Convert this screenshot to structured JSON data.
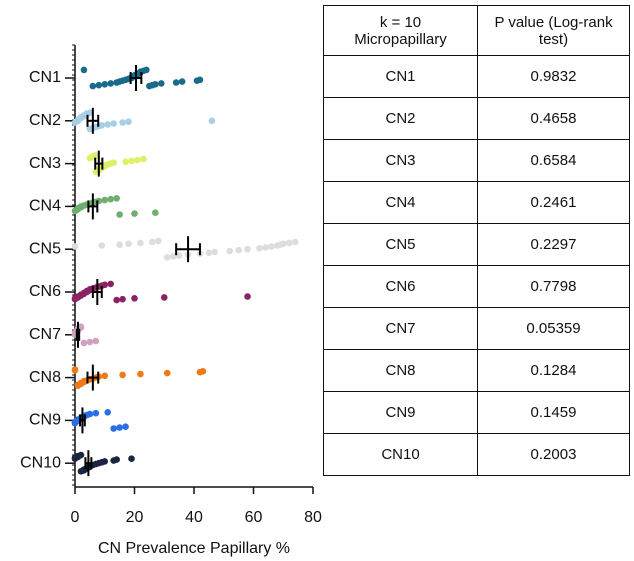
{
  "chart_data": {
    "type": "strip",
    "categories": [
      "CN1",
      "CN2",
      "CN3",
      "CN4",
      "CN5",
      "CN6",
      "CN7",
      "CN8",
      "CN9",
      "CN10"
    ],
    "colors": [
      "#1a6b8a",
      "#a8cfe6",
      "#e0ef6a",
      "#6fae6f",
      "#dddddd",
      "#8b2266",
      "#d1a0c0",
      "#ee7a16",
      "#2a6fe8",
      "#1a2540"
    ],
    "points": [
      [
        3,
        6,
        8,
        10,
        12,
        14,
        15,
        16,
        17,
        18,
        19,
        19,
        20,
        20,
        21,
        21,
        22,
        22,
        23,
        24,
        25,
        26,
        27,
        29,
        34,
        36,
        41,
        42
      ],
      [
        0,
        0.5,
        1,
        1,
        1.5,
        2,
        2,
        3,
        3,
        4,
        4,
        5,
        5,
        6,
        7,
        8,
        9,
        11,
        13,
        16,
        18,
        46
      ],
      [
        5,
        6,
        6,
        7,
        7,
        8,
        8,
        8,
        9,
        9,
        10,
        10,
        11,
        12,
        13,
        17,
        19,
        21,
        23
      ],
      [
        0,
        0.5,
        1,
        1,
        2,
        2,
        3,
        4,
        5,
        6,
        7,
        8,
        10,
        12,
        14,
        15,
        20,
        27
      ],
      [
        0,
        9,
        15,
        18,
        22,
        26,
        28,
        31,
        33,
        35,
        38,
        42,
        45,
        47,
        52,
        55,
        58,
        62,
        64,
        66,
        68,
        69,
        70,
        72,
        74
      ],
      [
        0,
        0,
        1,
        1,
        2,
        2,
        3,
        3,
        4,
        4,
        5,
        5,
        6,
        7,
        8,
        9,
        10,
        12,
        14,
        16,
        20,
        30,
        58
      ],
      [
        0,
        0,
        0,
        0.5,
        0.5,
        1,
        1,
        1,
        2,
        2,
        3,
        5,
        7
      ],
      [
        0,
        0,
        1,
        1,
        2,
        2,
        3,
        3,
        4,
        5,
        6,
        7,
        8,
        10,
        16,
        22,
        31,
        42,
        43
      ],
      [
        0,
        0,
        0.5,
        1,
        1,
        2,
        2,
        3,
        3,
        4,
        5,
        7,
        11,
        13,
        15,
        17
      ],
      [
        0,
        0,
        1,
        1,
        2,
        2,
        3,
        3,
        4,
        4,
        5,
        5,
        6,
        7,
        8,
        9,
        10,
        13,
        14,
        19
      ]
    ],
    "means": [
      20.5,
      6,
      8,
      6,
      38,
      7.5,
      1,
      6,
      2.5,
      4.5
    ],
    "errors": [
      1.8,
      1.8,
      1.2,
      1.5,
      4,
      1.5,
      0.4,
      1.8,
      0.8,
      1
    ],
    "xlim": [
      0,
      80
    ],
    "xticks": [
      0,
      20,
      40,
      60,
      80
    ],
    "xlabel": "CN Prevalence Papillary %"
  },
  "table": {
    "header": [
      [
        "k = 10",
        "Micropapillary"
      ],
      [
        "P value (Log-rank",
        "test)"
      ]
    ],
    "rows": [
      [
        "CN1",
        0.9832
      ],
      [
        "CN2",
        0.4658
      ],
      [
        "CN3",
        0.6584
      ],
      [
        "CN4",
        0.2461
      ],
      [
        "CN5",
        0.2297
      ],
      [
        "CN6",
        0.7798
      ],
      [
        "CN7",
        0.05359
      ],
      [
        "CN8",
        0.1284
      ],
      [
        "CN9",
        0.1459
      ],
      [
        "CN10",
        0.2003
      ]
    ]
  }
}
